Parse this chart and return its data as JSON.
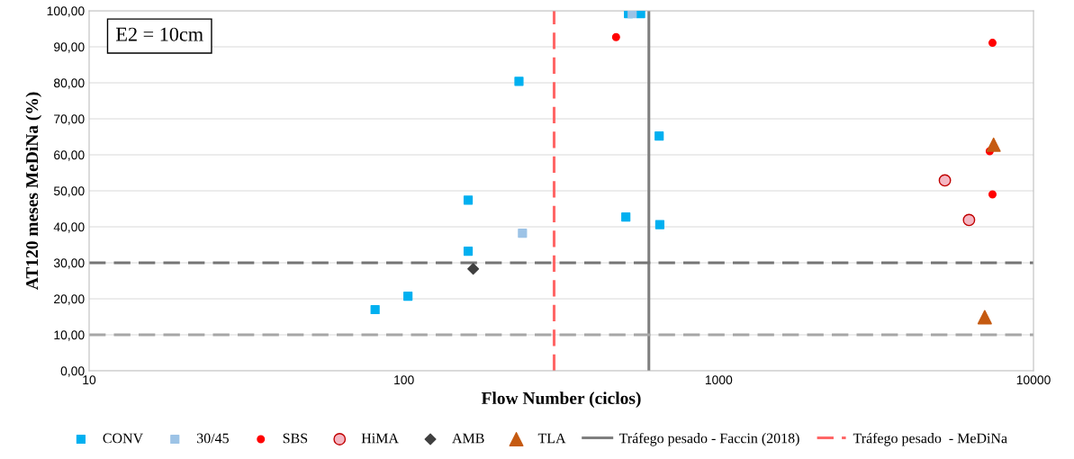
{
  "chart_data": {
    "type": "scatter",
    "xlabel": "Flow Number (ciclos)",
    "ylabel": "AT120 meses MeDiNa (%)",
    "annotations": [
      "E2 = 10cm"
    ],
    "log": "x",
    "xlim": [
      10,
      10000
    ],
    "xticks": [
      10,
      100,
      1000,
      10000
    ],
    "ylim": [
      0,
      100
    ],
    "yticks": [
      {
        "value": 0,
        "label": "0,00"
      },
      {
        "value": 10,
        "label": "10,00"
      },
      {
        "value": 20,
        "label": "20,00"
      },
      {
        "value": 30,
        "label": "30,00"
      },
      {
        "value": 40,
        "label": "40,00"
      },
      {
        "value": 50,
        "label": "50,00"
      },
      {
        "value": 60,
        "label": "60,00"
      },
      {
        "value": 70,
        "label": "70,00"
      },
      {
        "value": 80,
        "label": "80,00"
      },
      {
        "value": 90,
        "label": "90,00"
      },
      {
        "value": 100,
        "label": "100,00"
      }
    ],
    "grid": "y",
    "legend": "bottom",
    "series": [
      {
        "name": "CONV",
        "color": "#00b0f0",
        "marker": "square",
        "x": [
          81,
          103,
          160,
          160,
          232,
          507,
          517,
          565,
          647,
          650
        ],
        "values": [
          17,
          20.7,
          47.4,
          33.2,
          80.4,
          42.7,
          99.2,
          99.2,
          65.2,
          40.6
        ]
      },
      {
        "name": "30/45",
        "color": "#9dc3e6",
        "marker": "square",
        "x": [
          238,
          531
        ],
        "values": [
          38.2,
          99.2
        ]
      },
      {
        "name": "SBS",
        "color": "#ff0000",
        "marker": "circle",
        "x": [
          472,
          7410,
          7260,
          7410
        ],
        "values": [
          92.7,
          91.1,
          61.0,
          49.0
        ]
      },
      {
        "name": "HiMA",
        "color": "#f4b6c2",
        "marker": "circle",
        "x": [
          5230,
          6240
        ],
        "values": [
          52.9,
          41.9
        ]
      },
      {
        "name": "AMB",
        "color": "#404040",
        "marker": "diamond",
        "x": [
          166
        ],
        "values": [
          28.3
        ]
      },
      {
        "name": "TLA",
        "color": "#c55a11",
        "marker": "triangle",
        "x": [
          7470,
          7000
        ],
        "values": [
          62.8,
          14.9
        ]
      }
    ],
    "ref_lines": [
      {
        "axis": "x",
        "value": 600,
        "label": "Tráfego pesado - Faccin (2018)",
        "color": "#7f7f7f",
        "line_style": "solid"
      },
      {
        "axis": "x",
        "value": 300,
        "label": "Tráfego pesado  - MeDiNa",
        "color": "#ff6666",
        "line_style": "dashed"
      },
      {
        "axis": "y",
        "value": 30,
        "color": "#757575",
        "line_style": "dashed"
      },
      {
        "axis": "y",
        "value": 10,
        "color": "#a6a6a6",
        "line_style": "dashed"
      }
    ]
  }
}
